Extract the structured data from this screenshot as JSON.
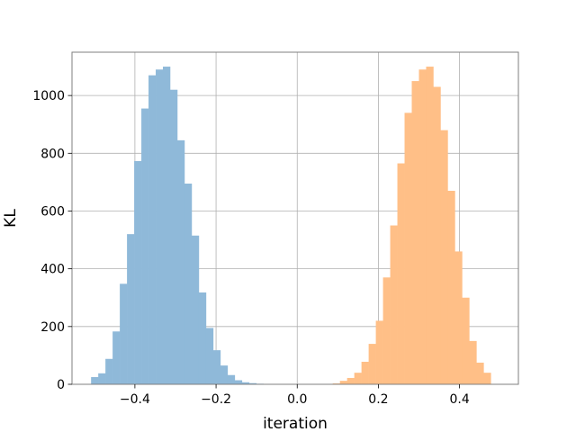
{
  "chart_data": {
    "type": "bar",
    "title": "",
    "xlabel": "iteration",
    "ylabel": "KL",
    "xlim": [
      -0.555,
      0.545
    ],
    "ylim": [
      0,
      1150
    ],
    "grid": true,
    "legend": "none",
    "x_ticks": [
      -0.4,
      -0.2,
      0.0,
      0.2,
      0.4
    ],
    "x_tick_labels": [
      "−0.4",
      "−0.2",
      "0.0",
      "0.2",
      "0.4"
    ],
    "y_ticks": [
      0,
      200,
      400,
      600,
      800,
      1000
    ],
    "y_tick_labels": [
      "0",
      "200",
      "400",
      "600",
      "800",
      "1000"
    ],
    "series": [
      {
        "color": "#8fb9d9",
        "bin_width": 0.0177,
        "bin_starts": [
          -0.508,
          -0.4903,
          -0.4726,
          -0.4549,
          -0.4372,
          -0.4195,
          -0.4018,
          -0.3841,
          -0.3664,
          -0.3487,
          -0.331,
          -0.3133,
          -0.2956,
          -0.2779,
          -0.2602,
          -0.2425,
          -0.2248,
          -0.2071,
          -0.1894,
          -0.1717,
          -0.154,
          -0.1363,
          -0.1186,
          -0.1009,
          -0.0832,
          -0.0655
        ],
        "values": [
          25,
          38,
          88,
          183,
          348,
          520,
          773,
          955,
          1070,
          1090,
          1100,
          1020,
          845,
          695,
          515,
          318,
          195,
          118,
          65,
          32,
          14,
          7,
          4,
          2,
          1,
          1
        ]
      },
      {
        "color": "#ffbf87",
        "bin_width": 0.0177,
        "bin_starts": [
          0.0875,
          0.1052,
          0.1229,
          0.1406,
          0.1583,
          0.176,
          0.1937,
          0.2114,
          0.2291,
          0.2468,
          0.2645,
          0.2822,
          0.2999,
          0.3176,
          0.3353,
          0.353,
          0.3707,
          0.3884,
          0.4061,
          0.4238,
          0.4415,
          0.4592
        ],
        "values": [
          3,
          12,
          22,
          40,
          78,
          140,
          220,
          370,
          550,
          765,
          940,
          1050,
          1090,
          1100,
          1030,
          880,
          670,
          460,
          300,
          150,
          75,
          40
        ]
      }
    ]
  }
}
